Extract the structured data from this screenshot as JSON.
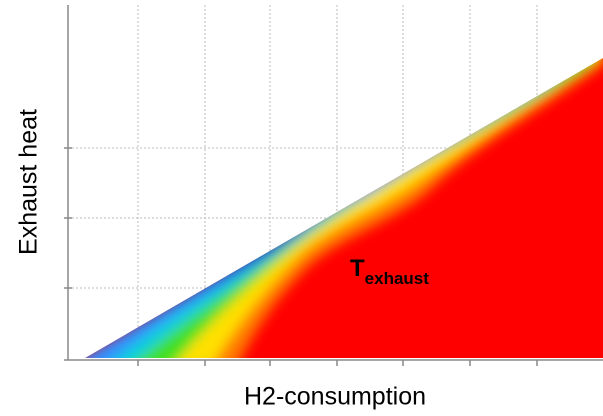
{
  "chart_data": {
    "type": "contour",
    "xlabel": "H2-consumption",
    "ylabel": "Exhaust heat",
    "annotation": {
      "text": "T",
      "subscript": "exhaust"
    }
  }
}
